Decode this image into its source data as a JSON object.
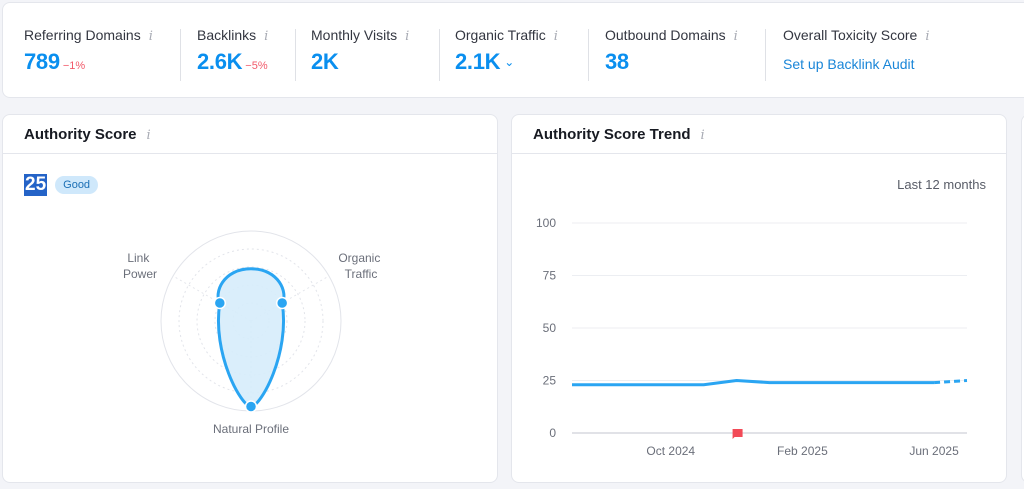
{
  "summary": {
    "metrics": [
      {
        "label": "Referring Domains",
        "value": "789",
        "delta": "−1%"
      },
      {
        "label": "Backlinks",
        "value": "2.6K",
        "delta": "−5%"
      },
      {
        "label": "Monthly Visits",
        "value": "2K"
      },
      {
        "label": "Organic Traffic",
        "value": "2.1K"
      },
      {
        "label": "Outbound Domains",
        "value": "38"
      },
      {
        "label": "Overall Toxicity Score",
        "link": "Set up Backlink Audit"
      }
    ],
    "info_glyph": "i"
  },
  "authority": {
    "title": "Authority Score",
    "score": "25",
    "badge": "Good",
    "radar": {
      "axes": [
        {
          "label_lines": [
            "Link",
            "Power"
          ],
          "value": 0.4
        },
        {
          "label_lines": [
            "Organic",
            "Traffic"
          ],
          "value": 0.4
        },
        {
          "label_lines": [
            "Natural Profile"
          ],
          "value": 0.95
        }
      ],
      "accent": "#2aa5f2",
      "fill": "#d6ecfb"
    }
  },
  "trend": {
    "title": "Authority Score Trend",
    "range": "Last 12 months",
    "chart_data": {
      "type": "line",
      "x": [
        "Jul 2024",
        "Aug 2024",
        "Sep 2024",
        "Oct 2024",
        "Nov 2024",
        "Dec 2024",
        "Jan 2025",
        "Feb 2025",
        "Mar 2025",
        "Apr 2025",
        "May 2025",
        "Jun 2025",
        "Jul 2025"
      ],
      "series": [
        {
          "name": "Authority Score",
          "values": [
            23,
            23,
            23,
            23,
            23,
            25,
            24,
            24,
            24,
            24,
            24,
            24,
            25
          ],
          "projected_from_index": 11
        }
      ],
      "yticks": [
        0,
        25,
        50,
        75,
        100
      ],
      "xtick_labels": [
        "Oct 2024",
        "Feb 2025",
        "Jun 2025"
      ],
      "ylim": [
        0,
        100
      ],
      "markers": [
        {
          "x": "Dec 2024",
          "type": "flag"
        }
      ],
      "grid": true,
      "line_color": "#2aa5f2",
      "marker_color": "#f24a57"
    }
  }
}
